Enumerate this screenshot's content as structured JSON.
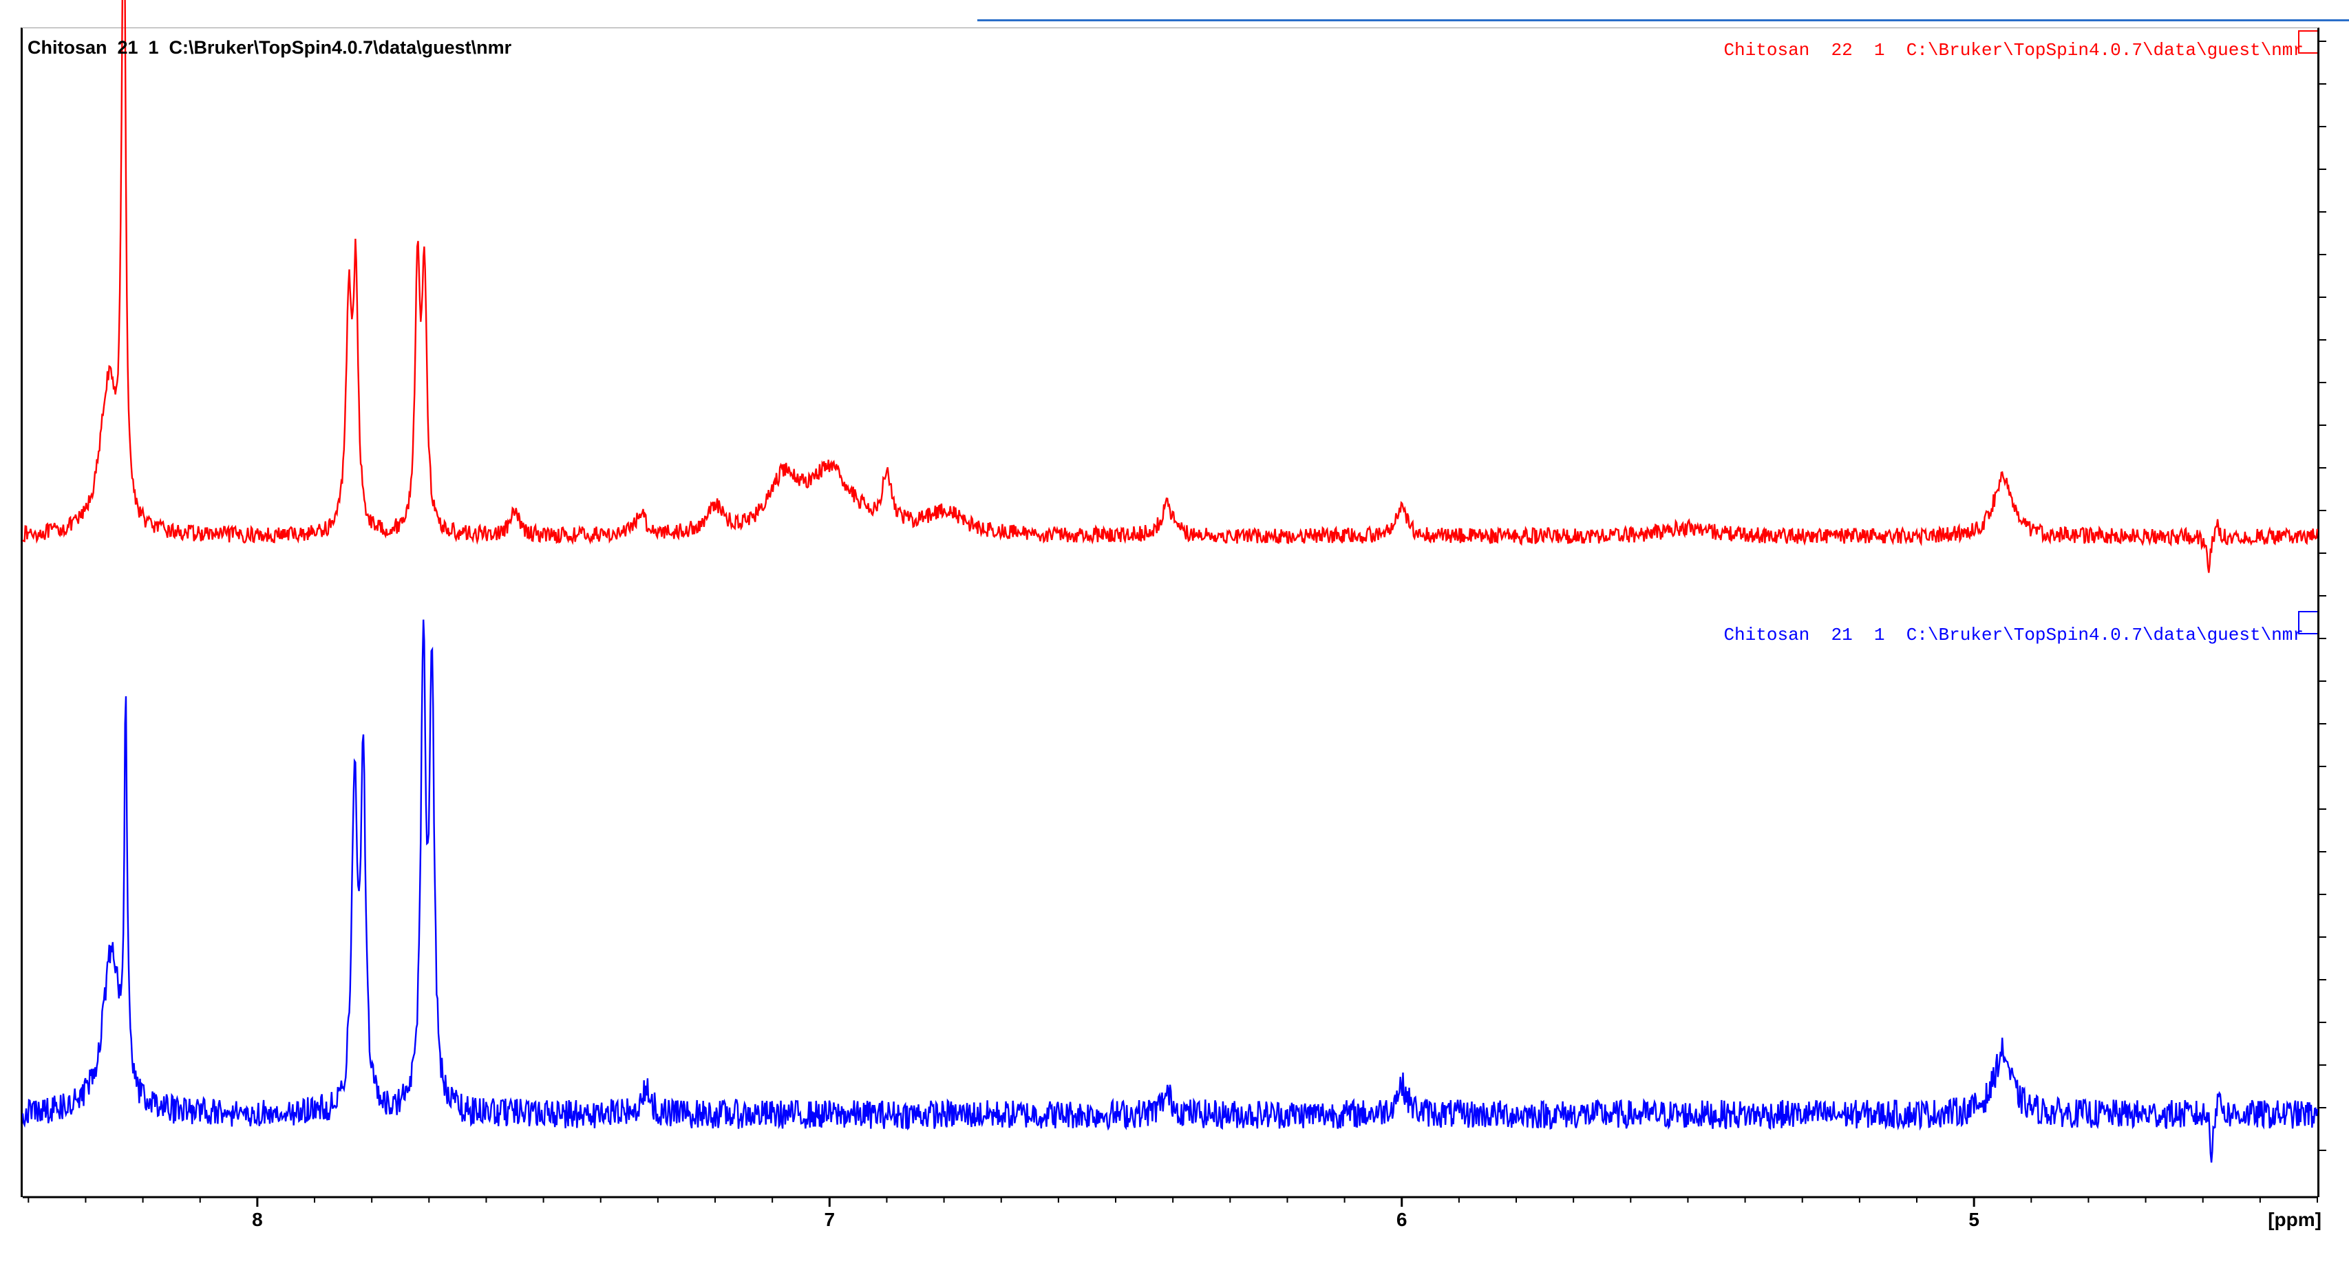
{
  "window": {
    "title": "Chitosan  21  1  C:\\Bruker\\TopSpin4.0.7\\data\\guest\\nmr"
  },
  "legend": {
    "red": "Chitosan  22  1  C:\\Bruker\\TopSpin4.0.7\\data\\guest\\nmr",
    "blue": "Chitosan  21  1  C:\\Bruker\\TopSpin4.0.7\\data\\guest\\nmr"
  },
  "colors": {
    "accent_tab": "#2a6fc9",
    "red_trace": "#ff0000",
    "blue_trace": "#0000ff",
    "axis": "#000000"
  },
  "chart_data": {
    "type": "line",
    "title": "Chitosan  21  1  C:\\Bruker\\TopSpin4.0.7\\data\\guest\\nmr",
    "xlabel": "[ppm]",
    "xlim": [
      8.41,
      4.4
    ],
    "x_reversed": true,
    "x_ticks": [
      {
        "value": 8,
        "label": "8"
      },
      {
        "value": 7,
        "label": "7"
      },
      {
        "value": 6,
        "label": "6"
      },
      {
        "value": 5,
        "label": "5"
      }
    ],
    "series": [
      {
        "name": "Chitosan  22  1  C:\\Bruker\\TopSpin4.0.7\\data\\guest\\nmr",
        "color": "#ff0000",
        "baseline": 0.03,
        "noise": 0.018,
        "peaks": [
          {
            "ppm": 8.26,
            "height": 0.34,
            "width": 0.018
          },
          {
            "ppm": 8.235,
            "height": 0.84,
            "width": 0.004
          },
          {
            "ppm": 8.232,
            "height": 0.74,
            "width": 0.003
          },
          {
            "ppm": 7.84,
            "height": 0.52,
            "width": 0.006
          },
          {
            "ppm": 7.828,
            "height": 0.55,
            "width": 0.005
          },
          {
            "ppm": 7.72,
            "height": 0.6,
            "width": 0.005
          },
          {
            "ppm": 7.708,
            "height": 0.58,
            "width": 0.005
          },
          {
            "ppm": 7.55,
            "height": 0.05,
            "width": 0.01
          },
          {
            "ppm": 7.33,
            "height": 0.05,
            "width": 0.01
          },
          {
            "ppm": 7.2,
            "height": 0.06,
            "width": 0.015
          },
          {
            "ppm": 7.08,
            "height": 0.11,
            "width": 0.03
          },
          {
            "ppm": 7.0,
            "height": 0.14,
            "width": 0.05
          },
          {
            "ppm": 6.9,
            "height": 0.11,
            "width": 0.01
          },
          {
            "ppm": 6.8,
            "height": 0.05,
            "width": 0.04
          },
          {
            "ppm": 6.41,
            "height": 0.07,
            "width": 0.012
          },
          {
            "ppm": 6.0,
            "height": 0.06,
            "width": 0.012
          },
          {
            "ppm": 5.5,
            "height": 0.02,
            "width": 0.05
          },
          {
            "ppm": 4.95,
            "height": 0.14,
            "width": 0.018
          },
          {
            "ppm": 4.59,
            "height": -0.08,
            "width": 0.004
          },
          {
            "ppm": 4.575,
            "height": 0.03,
            "width": 0.004
          }
        ]
      },
      {
        "name": "Chitosan  21  1  C:\\Bruker\\TopSpin4.0.7\\data\\guest\\nmr",
        "color": "#0000ff",
        "baseline": 0.03,
        "noise": 0.03,
        "peaks": [
          {
            "ppm": 8.255,
            "height": 0.34,
            "width": 0.018
          },
          {
            "ppm": 8.23,
            "height": 0.76,
            "width": 0.003
          },
          {
            "ppm": 7.83,
            "height": 0.66,
            "width": 0.006
          },
          {
            "ppm": 7.815,
            "height": 0.69,
            "width": 0.005
          },
          {
            "ppm": 7.71,
            "height": 0.95,
            "width": 0.005
          },
          {
            "ppm": 7.695,
            "height": 0.88,
            "width": 0.005
          },
          {
            "ppm": 7.32,
            "height": 0.05,
            "width": 0.01
          },
          {
            "ppm": 6.41,
            "height": 0.04,
            "width": 0.012
          },
          {
            "ppm": 6.0,
            "height": 0.06,
            "width": 0.012
          },
          {
            "ppm": 4.95,
            "height": 0.13,
            "width": 0.018
          },
          {
            "ppm": 4.585,
            "height": -0.09,
            "width": 0.002
          },
          {
            "ppm": 4.57,
            "height": 0.05,
            "width": 0.003
          }
        ]
      }
    ]
  }
}
